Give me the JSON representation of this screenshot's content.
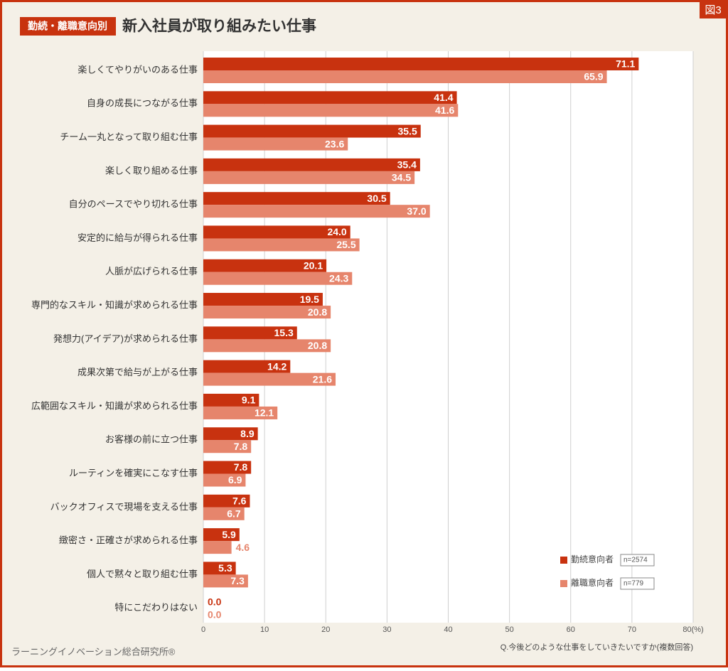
{
  "chart_data": {
    "type": "bar",
    "orientation": "horizontal",
    "tag": "勤続・離職意向別",
    "title": "新入社員が取り組みたい仕事",
    "figure_label": "図3",
    "question": "Q.今後どのような仕事をしていきたいですか(複数回答)",
    "source": "ラーニングイノベーション総合研究所®",
    "categories": [
      "楽しくてやりがいのある仕事",
      "自身の成長につながる仕事",
      "チーム一丸となって取り組む仕事",
      "楽しく取り組める仕事",
      "自分のペースでやり切れる仕事",
      "安定的に給与が得られる仕事",
      "人脈が広げられる仕事",
      "専門的なスキル・知識が求められる仕事",
      "発想力(アイデア)が求められる仕事",
      "成果次第で給与が上がる仕事",
      "広範囲なスキル・知識が求められる仕事",
      "お客様の前に立つ仕事",
      "ルーティンを確実にこなす仕事",
      "バックオフィスで現場を支える仕事",
      "緻密さ・正確さが求められる仕事",
      "個人で黙々と取り組む仕事",
      "特にこだわりはない"
    ],
    "series": [
      {
        "name": "勤続意向者",
        "n": "n=2574",
        "color": "#c8320f",
        "values": [
          71.1,
          41.4,
          35.5,
          35.4,
          30.5,
          24.0,
          20.1,
          19.5,
          15.3,
          14.2,
          9.1,
          8.9,
          7.8,
          7.6,
          5.9,
          5.3,
          0.0
        ],
        "value_labels": [
          "71.1",
          "41.4",
          "35.5",
          "35.4",
          "30.5",
          "24.0",
          "20.1",
          "19.5",
          "15.3",
          "14.2",
          "9.1",
          "8.9",
          "7.8",
          "7.6",
          "5.9",
          "5.3",
          "0.0"
        ]
      },
      {
        "name": "離職意向者",
        "n": "n=779",
        "color": "#e6856c",
        "values": [
          65.9,
          41.6,
          23.6,
          34.5,
          37.0,
          25.5,
          24.3,
          20.8,
          20.8,
          21.6,
          12.1,
          7.8,
          6.9,
          6.7,
          4.6,
          7.3,
          0.0
        ],
        "value_labels": [
          "65.9",
          "41.6",
          "23.6",
          "34.5",
          "37.0",
          "25.5",
          "24.3",
          "20.8",
          "20.8",
          "21.6",
          "12.1",
          "7.8",
          "6.9",
          "6.7",
          "4.6",
          "7.3",
          "0.0"
        ]
      }
    ],
    "xlim": [
      0,
      80
    ],
    "xticks": [
      0,
      10,
      20,
      30,
      40,
      50,
      60,
      70,
      {
        "value": 80,
        "label": "80(%)"
      }
    ],
    "grid": true
  }
}
